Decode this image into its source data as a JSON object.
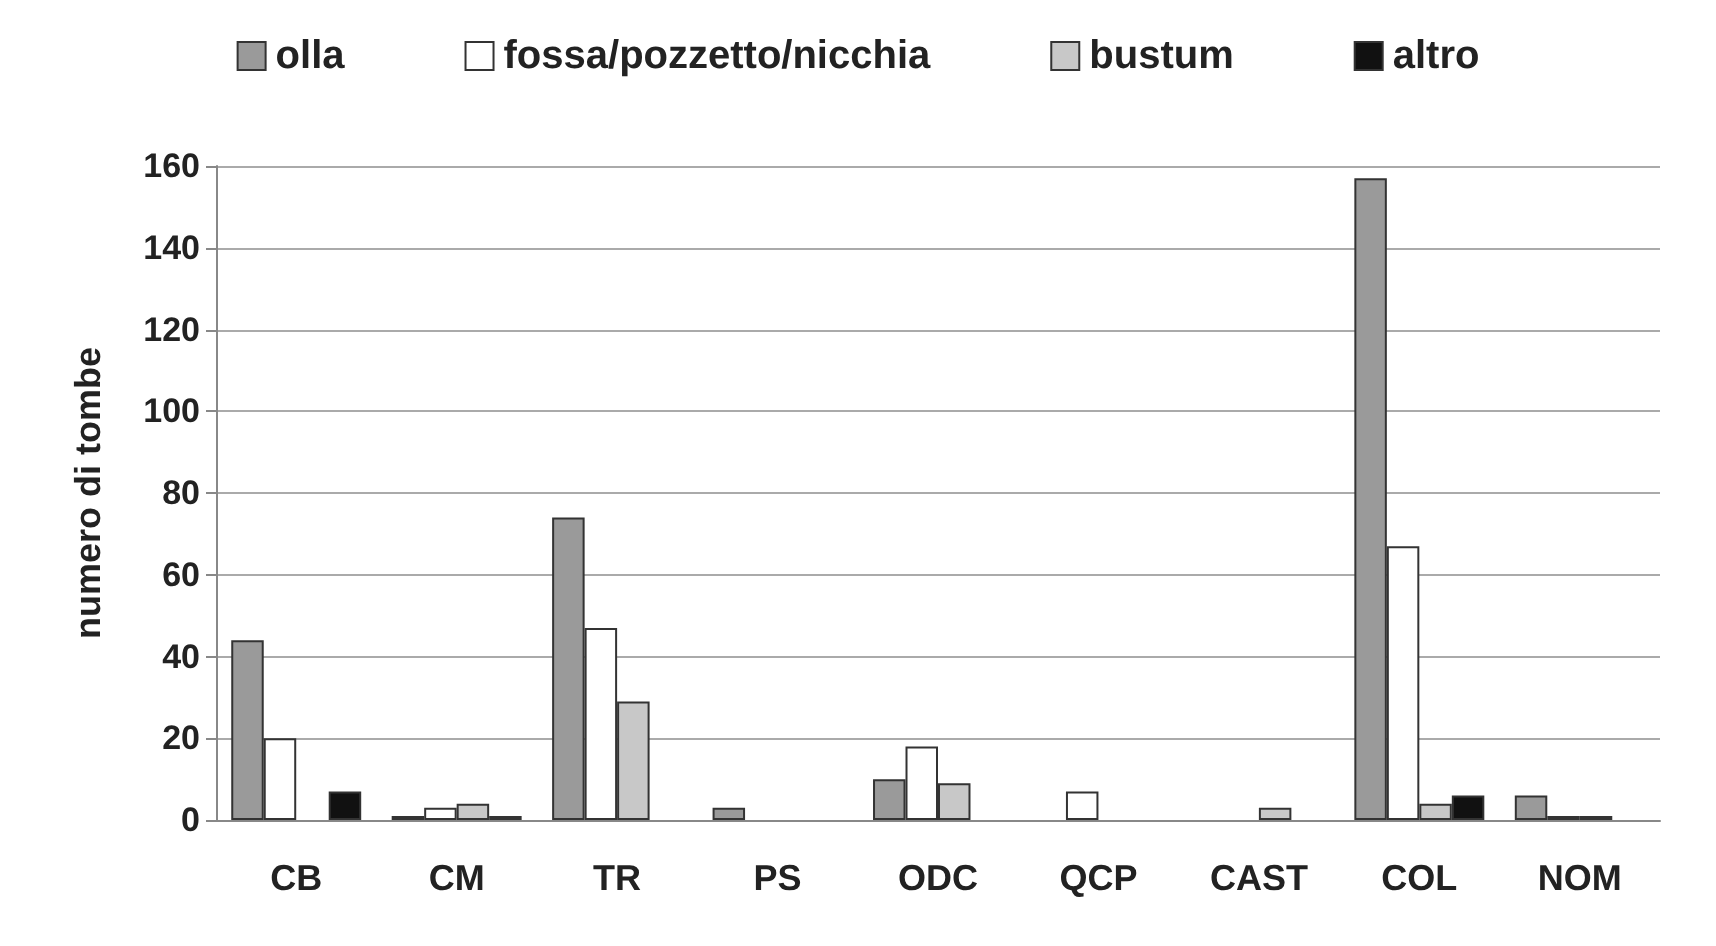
{
  "chart_data": {
    "type": "bar",
    "ylabel": "numero di tombe",
    "categories": [
      "CB",
      "CM",
      "TR",
      "PS",
      "ODC",
      "QCP",
      "CAST",
      "COL",
      "NOM"
    ],
    "series": [
      {
        "name": "olla",
        "color": "#9a9a9a",
        "values": [
          44,
          1,
          74,
          3,
          10,
          0,
          0,
          157,
          6
        ]
      },
      {
        "name": "fossa/pozzetto/nicchia",
        "color": "#ffffff",
        "values": [
          20,
          3,
          47,
          0,
          18,
          7,
          0,
          67,
          1
        ]
      },
      {
        "name": "bustum",
        "color": "#c8c8c8",
        "values": [
          0,
          4,
          29,
          0,
          9,
          0,
          3,
          4,
          1
        ]
      },
      {
        "name": "altro",
        "color": "#111111",
        "values": [
          7,
          1,
          0,
          0,
          0,
          0,
          0,
          6,
          0
        ]
      }
    ],
    "ylim": [
      0,
      160
    ],
    "yticks": [
      0,
      20,
      40,
      60,
      80,
      100,
      120,
      140,
      160
    ],
    "grid": "y",
    "legend": "top"
  }
}
